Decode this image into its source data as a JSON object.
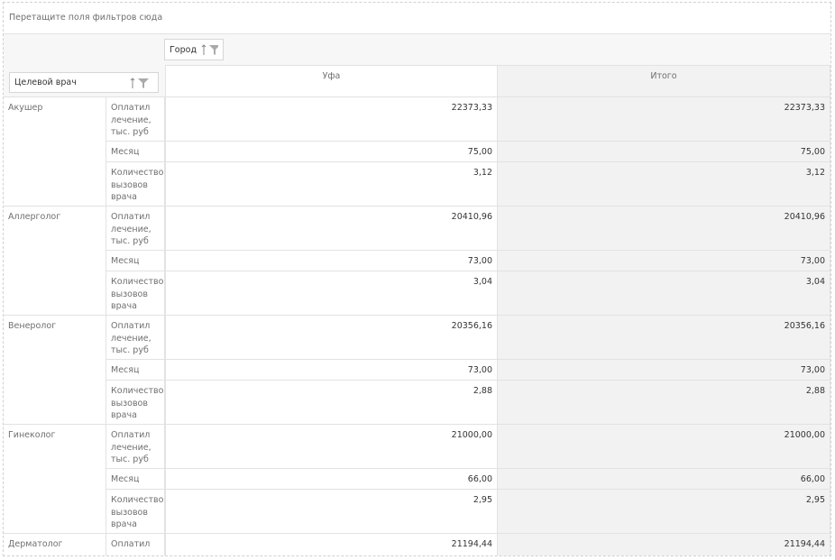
{
  "filter_area": "Перетащите поля фильтров сюда",
  "column_field": "Город",
  "row_field": "Целевой врач",
  "columns": [
    "Уфа",
    "Итого"
  ],
  "groups": [
    {
      "name": "Акушер",
      "rows": [
        {
          "measure": "Оплатил лечение, тыс. руб",
          "values": [
            "22373,33",
            "22373,33"
          ]
        },
        {
          "measure": "Месяц",
          "values": [
            "75,00",
            "75,00"
          ]
        },
        {
          "measure": "Количество вызовов врача",
          "values": [
            "3,12",
            "3,12"
          ]
        }
      ]
    },
    {
      "name": "Аллерголог",
      "rows": [
        {
          "measure": "Оплатил лечение, тыс. руб",
          "values": [
            "20410,96",
            "20410,96"
          ]
        },
        {
          "measure": "Месяц",
          "values": [
            "73,00",
            "73,00"
          ]
        },
        {
          "measure": "Количество вызовов врача",
          "values": [
            "3,04",
            "3,04"
          ]
        }
      ]
    },
    {
      "name": "Венеролог",
      "rows": [
        {
          "measure": "Оплатил лечение, тыс. руб",
          "values": [
            "20356,16",
            "20356,16"
          ]
        },
        {
          "measure": "Месяц",
          "values": [
            "73,00",
            "73,00"
          ]
        },
        {
          "measure": "Количество вызовов врача",
          "values": [
            "2,88",
            "2,88"
          ]
        }
      ]
    },
    {
      "name": "Гинеколог",
      "rows": [
        {
          "measure": "Оплатил лечение, тыс. руб",
          "values": [
            "21000,00",
            "21000,00"
          ]
        },
        {
          "measure": "Месяц",
          "values": [
            "66,00",
            "66,00"
          ]
        },
        {
          "measure": "Количество вызовов врача",
          "values": [
            "2,95",
            "2,95"
          ]
        }
      ]
    },
    {
      "name": "Дерматолог",
      "rows": [
        {
          "measure": "Оплатил",
          "values": [
            "21194,44",
            "21194,44"
          ]
        }
      ]
    }
  ]
}
